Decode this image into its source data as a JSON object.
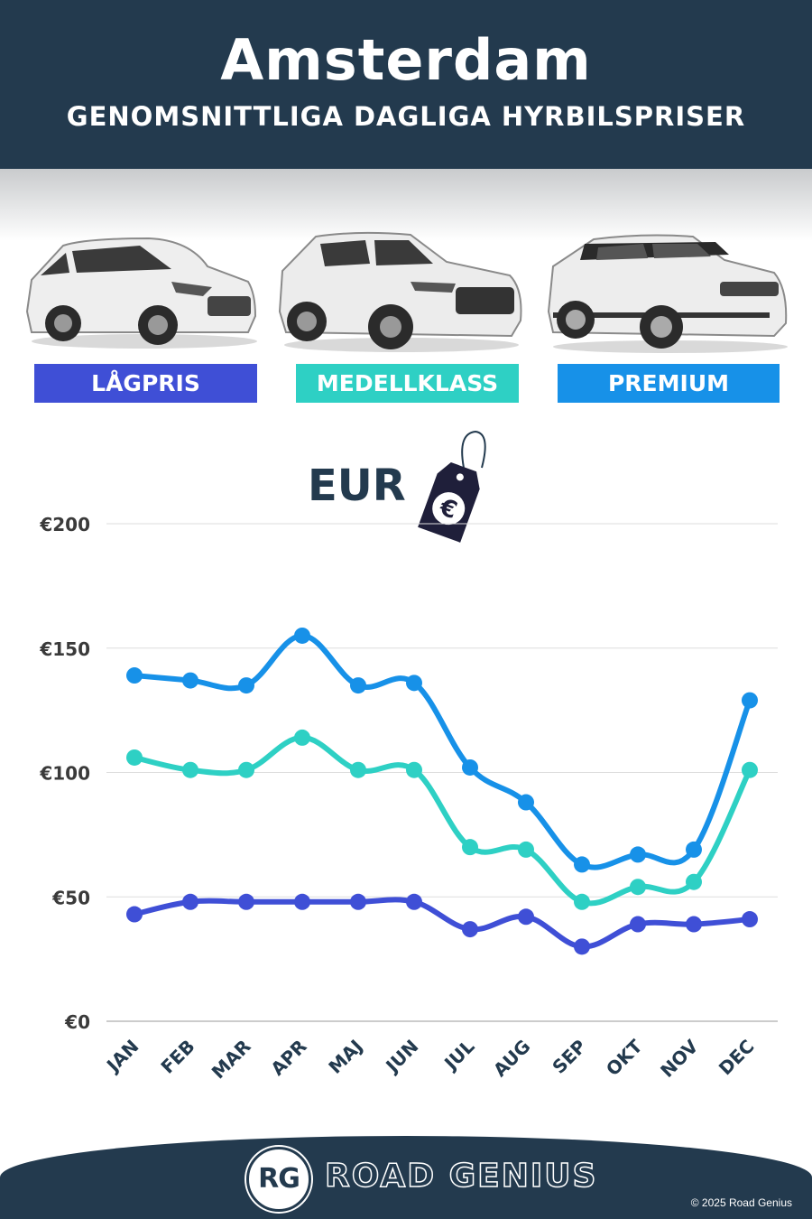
{
  "header": {
    "title": "Amsterdam",
    "subtitle": "GENOMSNITTLIGA DAGLIGA HYRBILSPRISER"
  },
  "categories": [
    {
      "label": "LÅGPRIS",
      "color": "#3f4fd6",
      "icon": "hatchback-car"
    },
    {
      "label": "MEDELLKLASS",
      "color": "#2ed0c4",
      "icon": "suv-car"
    },
    {
      "label": "PREMIUM",
      "color": "#1791e8",
      "icon": "luxury-suv-car"
    }
  ],
  "currency": {
    "label": "EUR",
    "icon": "euro-price-tag",
    "symbol": "€"
  },
  "chart_data": {
    "type": "line",
    "title": "GENOMSNITTLIGA DAGLIGA HYRBILSPRISER",
    "x": [
      "JAN",
      "FEB",
      "MAR",
      "APR",
      "MAJ",
      "JUN",
      "JUL",
      "AUG",
      "SEP",
      "OKT",
      "NOV",
      "DEC"
    ],
    "ylim": [
      0,
      200
    ],
    "yticks": [
      "€200",
      "€150",
      "€100",
      "€50",
      "€0"
    ],
    "ytick_values": [
      200,
      150,
      100,
      50,
      0
    ],
    "grid": true,
    "series": [
      {
        "name": "PREMIUM",
        "color": "#1791e8",
        "values": [
          139,
          137,
          135,
          155,
          135,
          136,
          102,
          88,
          63,
          67,
          69,
          129
        ]
      },
      {
        "name": "MEDELLKLASS",
        "color": "#2ed0c4",
        "values": [
          106,
          101,
          101,
          114,
          101,
          101,
          70,
          69,
          48,
          54,
          56,
          101
        ]
      },
      {
        "name": "LÅGPRIS",
        "color": "#3f4fd6",
        "values": [
          43,
          48,
          48,
          48,
          48,
          48,
          37,
          42,
          30,
          39,
          39,
          41
        ]
      }
    ]
  },
  "footer": {
    "logo_initials": "RG",
    "brand": "ROAD GENIUS",
    "copyright": "© 2025 Road Genius"
  }
}
